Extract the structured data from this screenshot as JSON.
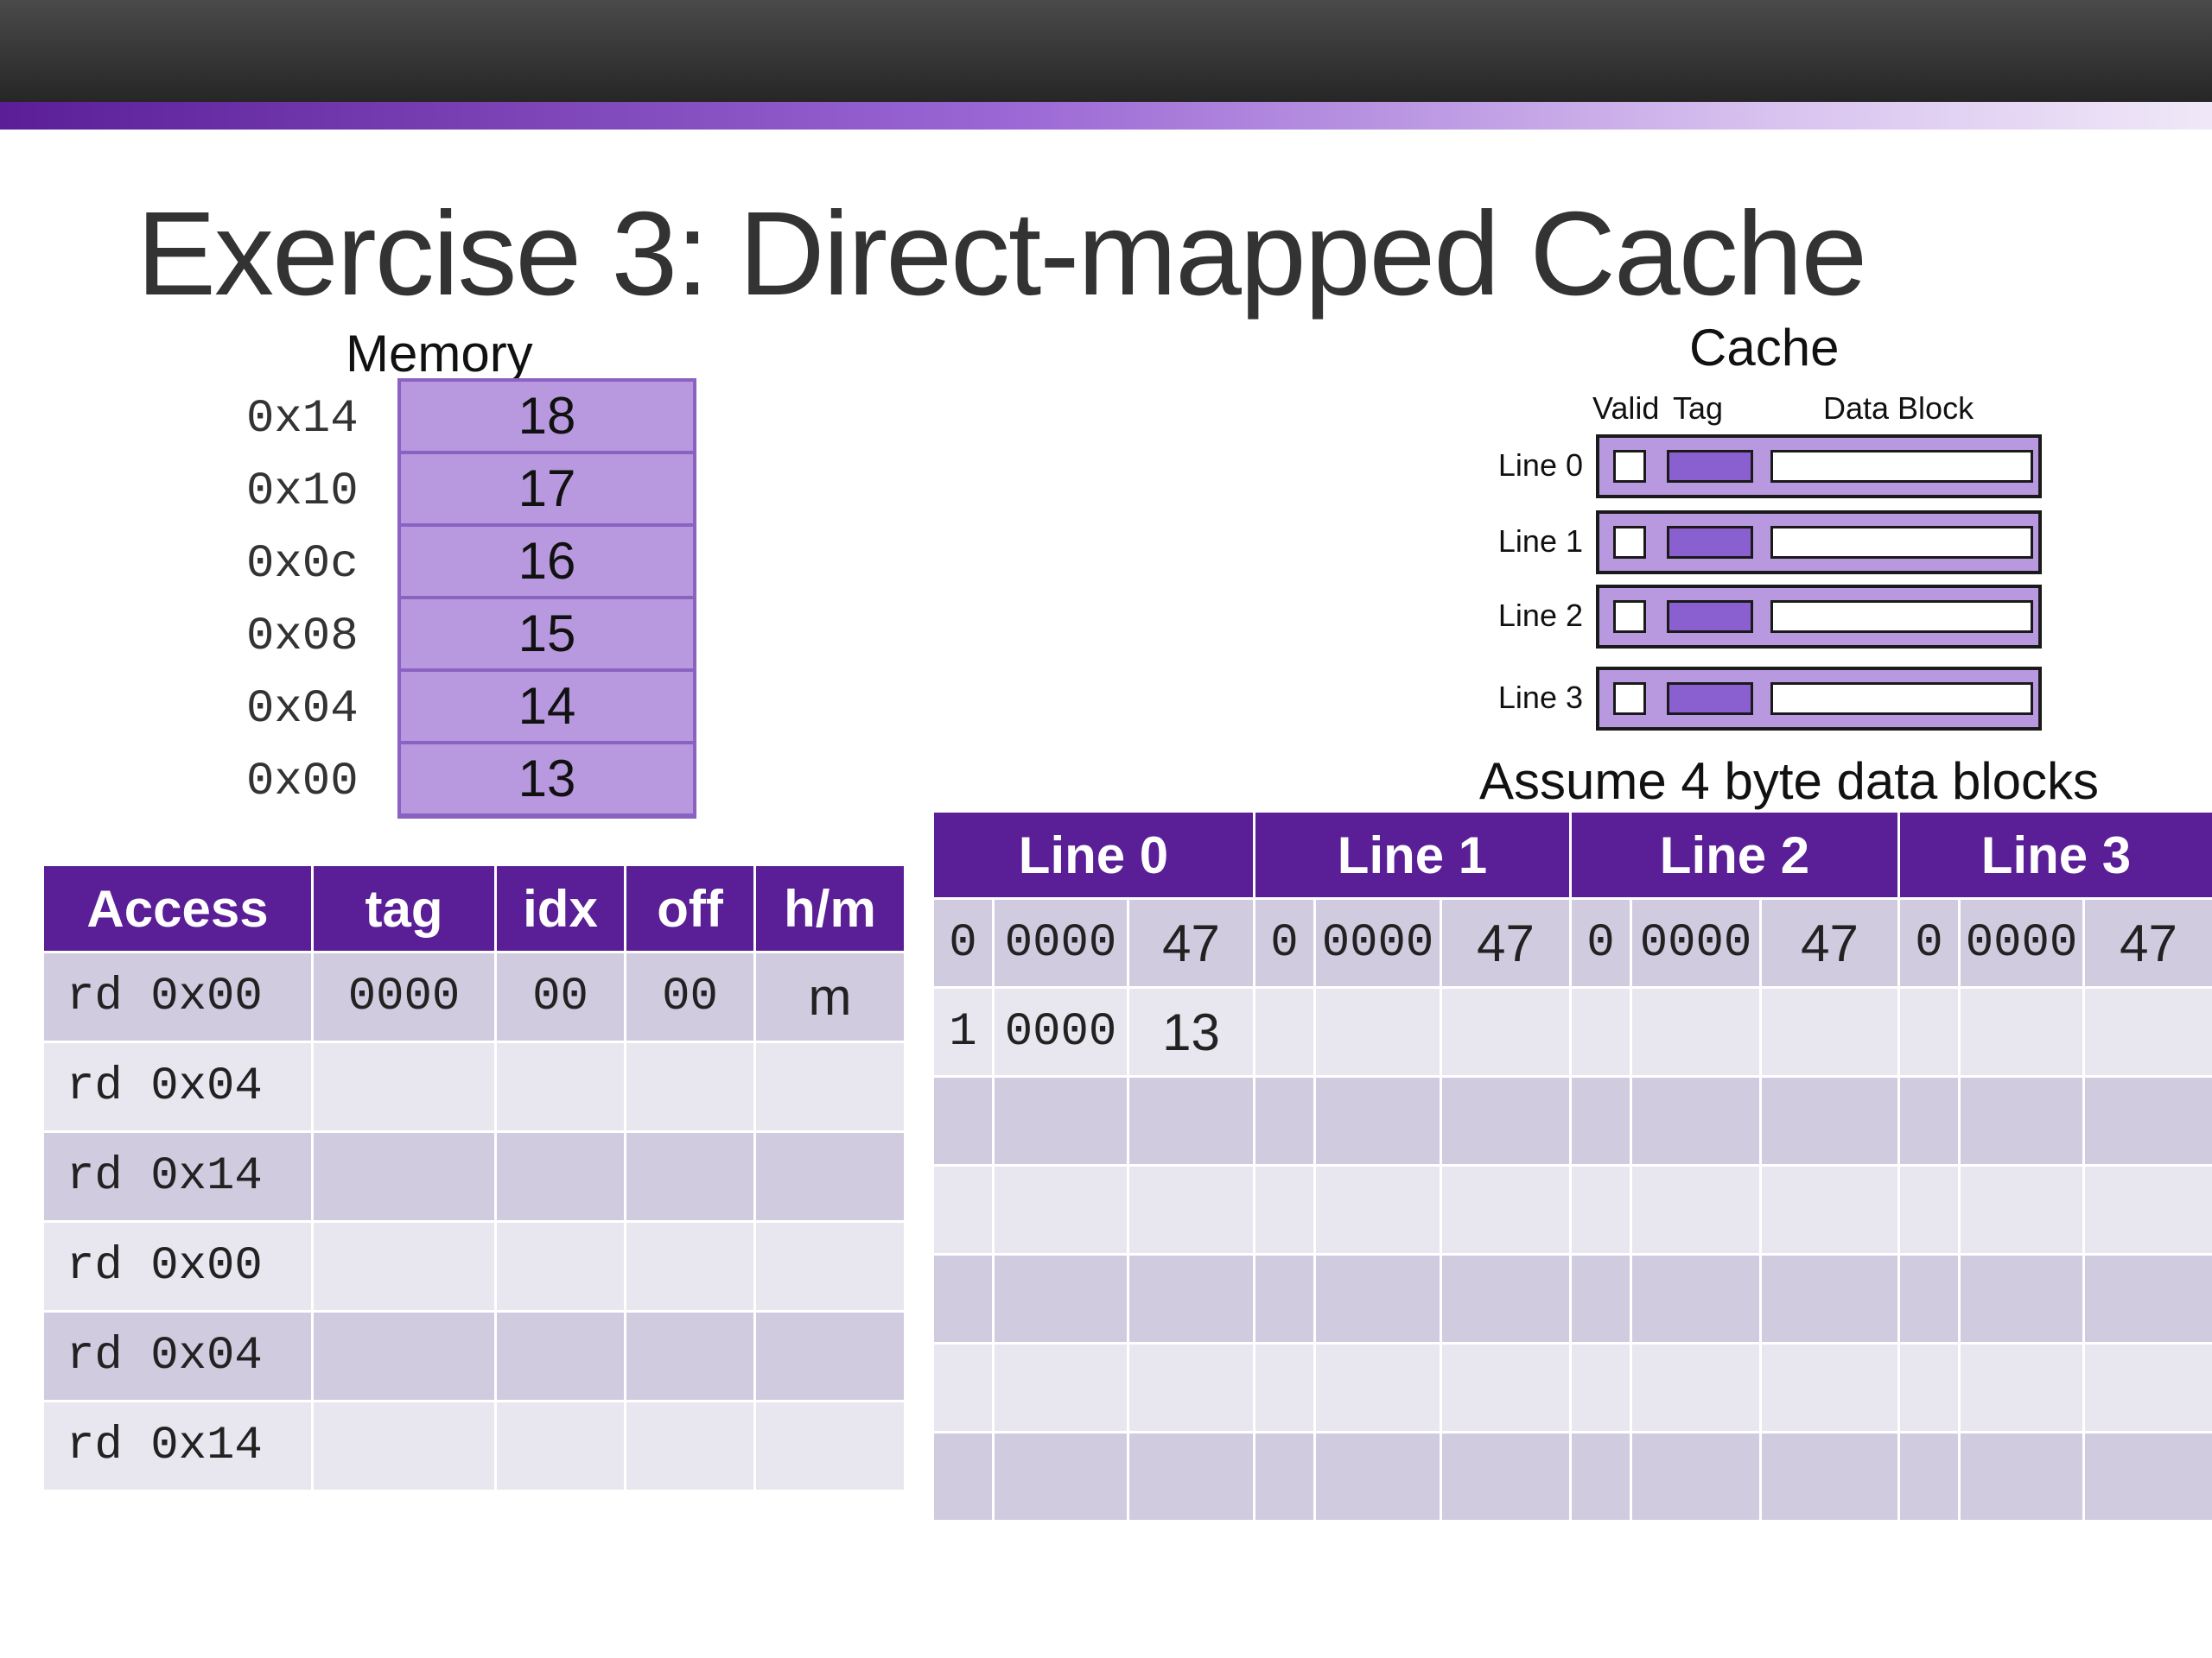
{
  "slide": {
    "title": "Exercise 3: Direct-mapped Cache"
  },
  "memory": {
    "label": "Memory",
    "rows": [
      {
        "addr": "0x14",
        "value": "18"
      },
      {
        "addr": "0x10",
        "value": "17"
      },
      {
        "addr": "0x0c",
        "value": "16"
      },
      {
        "addr": "0x08",
        "value": "15"
      },
      {
        "addr": "0x04",
        "value": "14"
      },
      {
        "addr": "0x00",
        "value": "13"
      }
    ]
  },
  "cache_diagram": {
    "label": "Cache",
    "headers": {
      "valid": "Valid",
      "tag": "Tag",
      "data": "Data Block"
    },
    "lines": [
      "Line 0",
      "Line 1",
      "Line 2",
      "Line 3"
    ],
    "note": "Assume 4 byte data blocks"
  },
  "access_table": {
    "headers": [
      "Access",
      "tag",
      "idx",
      "off",
      "h/m"
    ],
    "rows": [
      {
        "access": "rd 0x00",
        "tag": "0000",
        "idx": "00",
        "off": "00",
        "hm": "m"
      },
      {
        "access": "rd 0x04",
        "tag": "",
        "idx": "",
        "off": "",
        "hm": ""
      },
      {
        "access": "rd 0x14",
        "tag": "",
        "idx": "",
        "off": "",
        "hm": ""
      },
      {
        "access": "rd 0x00",
        "tag": "",
        "idx": "",
        "off": "",
        "hm": ""
      },
      {
        "access": "rd 0x04",
        "tag": "",
        "idx": "",
        "off": "",
        "hm": ""
      },
      {
        "access": "rd 0x14",
        "tag": "",
        "idx": "",
        "off": "",
        "hm": ""
      }
    ]
  },
  "lines_table": {
    "headers": [
      "Line 0",
      "Line 1",
      "Line 2",
      "Line 3"
    ],
    "rows": [
      [
        [
          "0",
          "0000",
          "47"
        ],
        [
          "0",
          "0000",
          "47"
        ],
        [
          "0",
          "0000",
          "47"
        ],
        [
          "0",
          "0000",
          "47"
        ]
      ],
      [
        [
          "1",
          "0000",
          "13"
        ],
        [
          "",
          "",
          ""
        ],
        [
          "",
          "",
          ""
        ],
        [
          "",
          "",
          ""
        ]
      ],
      [
        [
          "",
          "",
          ""
        ],
        [
          "",
          "",
          ""
        ],
        [
          "",
          "",
          ""
        ],
        [
          "",
          "",
          ""
        ]
      ],
      [
        [
          "",
          "",
          ""
        ],
        [
          "",
          "",
          ""
        ],
        [
          "",
          "",
          ""
        ],
        [
          "",
          "",
          ""
        ]
      ],
      [
        [
          "",
          "",
          ""
        ],
        [
          "",
          "",
          ""
        ],
        [
          "",
          "",
          ""
        ],
        [
          "",
          "",
          ""
        ]
      ],
      [
        [
          "",
          "",
          ""
        ],
        [
          "",
          "",
          ""
        ],
        [
          "",
          "",
          ""
        ],
        [
          "",
          "",
          ""
        ]
      ],
      [
        [
          "",
          "",
          ""
        ],
        [
          "",
          "",
          ""
        ],
        [
          "",
          "",
          ""
        ],
        [
          "",
          "",
          ""
        ]
      ]
    ]
  },
  "colors": {
    "header_purple": "#5a1e96",
    "memory_cell": "#b899df",
    "row_dark": "#d1cbdf",
    "row_light": "#e8e6ee"
  }
}
